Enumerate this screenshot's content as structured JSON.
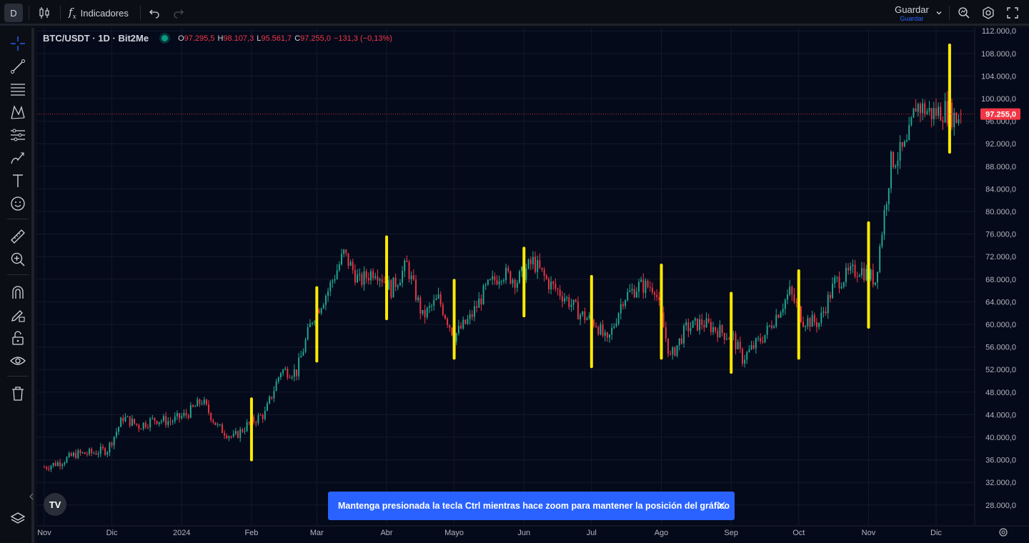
{
  "topbar": {
    "avatar_letter": "D",
    "indicators_label": "Indicadores",
    "save_label": "Guardar",
    "save_sublabel": "Guardar"
  },
  "legend": {
    "symbol": "BTC/USDT · 1D · Bit2Me",
    "open_label": "O",
    "open_value": "97.295,5",
    "high_label": "H",
    "high_value": "98.107,3",
    "low_label": "L",
    "low_value": "95.561,7",
    "close_label": "C",
    "close_value": "97.255,0",
    "change_value": "−131,3 (−0,13%)"
  },
  "price_axis": {
    "labels": [
      "112.000,0",
      "108.000,0",
      "104.000,0",
      "100.000,0",
      "96.000,0",
      "92.000,0",
      "88.000,0",
      "84.000,0",
      "80.000,0",
      "76.000,0",
      "72.000,0",
      "68.000,0",
      "64.000,0",
      "60.000,0",
      "56.000,0",
      "52.000,0",
      "48.000,0",
      "44.000,0",
      "40.000,0",
      "36.000,0",
      "32.000,0",
      "28.000,0"
    ],
    "current_price": "97.255,0"
  },
  "time_axis": {
    "labels": [
      "Nov",
      "Dic",
      "2024",
      "Feb",
      "Mar",
      "Abr",
      "Mayo",
      "Jun",
      "Jul",
      "Ago",
      "Sep",
      "Oct",
      "Nov",
      "Dic"
    ]
  },
  "colors": {
    "up": "#22ab94",
    "down": "#f23645",
    "marker": "#ffeb00",
    "toast": "#2962ff",
    "background": "#050a1a"
  },
  "toast": {
    "message": "Mantenga presionada la tecla Ctrl mientras hace zoom para mantener la posición del gráfico"
  },
  "logo_text": "TV",
  "chart_data": {
    "type": "candlestick",
    "symbol": "BTC/USDT",
    "interval": "1D",
    "ylim": [
      26000,
      113000
    ],
    "close_series": [
      [
        "2023-11-01",
        34700
      ],
      [
        "2023-11-08",
        35600
      ],
      [
        "2023-11-15",
        37000
      ],
      [
        "2023-11-22",
        37200
      ],
      [
        "2023-11-29",
        37800
      ],
      [
        "2023-12-06",
        43500
      ],
      [
        "2023-12-13",
        42000
      ],
      [
        "2023-12-20",
        43200
      ],
      [
        "2023-12-27",
        42800
      ],
      [
        "2024-01-03",
        44000
      ],
      [
        "2024-01-10",
        46500
      ],
      [
        "2024-01-17",
        41800
      ],
      [
        "2024-01-24",
        39900
      ],
      [
        "2024-01-31",
        42500
      ],
      [
        "2024-02-07",
        44200
      ],
      [
        "2024-02-14",
        51800
      ],
      [
        "2024-02-21",
        51600
      ],
      [
        "2024-02-28",
        61000
      ],
      [
        "2024-03-06",
        66000
      ],
      [
        "2024-03-13",
        72500
      ],
      [
        "2024-03-20",
        67500
      ],
      [
        "2024-03-27",
        69800
      ],
      [
        "2024-04-03",
        66200
      ],
      [
        "2024-04-10",
        70500
      ],
      [
        "2024-04-17",
        61300
      ],
      [
        "2024-04-24",
        64500
      ],
      [
        "2024-05-01",
        58000
      ],
      [
        "2024-05-08",
        61000
      ],
      [
        "2024-05-15",
        66200
      ],
      [
        "2024-05-22",
        69200
      ],
      [
        "2024-05-29",
        67800
      ],
      [
        "2024-06-05",
        71100
      ],
      [
        "2024-06-12",
        67300
      ],
      [
        "2024-06-19",
        64900
      ],
      [
        "2024-06-26",
        61800
      ],
      [
        "2024-07-03",
        60200
      ],
      [
        "2024-07-08",
        56600
      ],
      [
        "2024-07-15",
        64700
      ],
      [
        "2024-07-22",
        66800
      ],
      [
        "2024-07-29",
        66700
      ],
      [
        "2024-08-05",
        54000
      ],
      [
        "2024-08-12",
        59300
      ],
      [
        "2024-08-19",
        60300
      ],
      [
        "2024-08-26",
        59000
      ],
      [
        "2024-09-02",
        57500
      ],
      [
        "2024-09-06",
        53900
      ],
      [
        "2024-09-16",
        58200
      ],
      [
        "2024-09-27",
        65700
      ],
      [
        "2024-10-03",
        60800
      ],
      [
        "2024-10-10",
        60300
      ],
      [
        "2024-10-17",
        67400
      ],
      [
        "2024-10-28",
        69900
      ],
      [
        "2024-11-04",
        67800
      ],
      [
        "2024-11-11",
        88700
      ],
      [
        "2024-11-18",
        91500
      ],
      [
        "2024-11-22",
        98900
      ],
      [
        "2024-11-29",
        97400
      ],
      [
        "2024-12-05",
        98000
      ],
      [
        "2024-12-10",
        96500
      ],
      [
        "2024-12-12",
        97255
      ]
    ],
    "last": {
      "open": 97295.5,
      "high": 98107.3,
      "low": 95561.7,
      "close": 97255.0,
      "change": -131.3,
      "change_pct": -0.13
    },
    "yellow_markers": [
      {
        "date": "2024-02-01",
        "low": 36000,
        "high": 46800
      },
      {
        "date": "2024-03-01",
        "low": 53500,
        "high": 66500
      },
      {
        "date": "2024-04-01",
        "low": 61000,
        "high": 75500
      },
      {
        "date": "2024-05-01",
        "low": 54000,
        "high": 67800
      },
      {
        "date": "2024-06-01",
        "low": 61500,
        "high": 73500
      },
      {
        "date": "2024-07-01",
        "low": 52500,
        "high": 68500
      },
      {
        "date": "2024-08-01",
        "low": 54000,
        "high": 70500
      },
      {
        "date": "2024-09-01",
        "low": 51500,
        "high": 65500
      },
      {
        "date": "2024-10-01",
        "low": 54000,
        "high": 69500
      },
      {
        "date": "2024-11-01",
        "low": 59500,
        "high": 78000
      },
      {
        "date": "2024-12-07",
        "low": 90500,
        "high": 109500
      }
    ],
    "grid": true
  }
}
